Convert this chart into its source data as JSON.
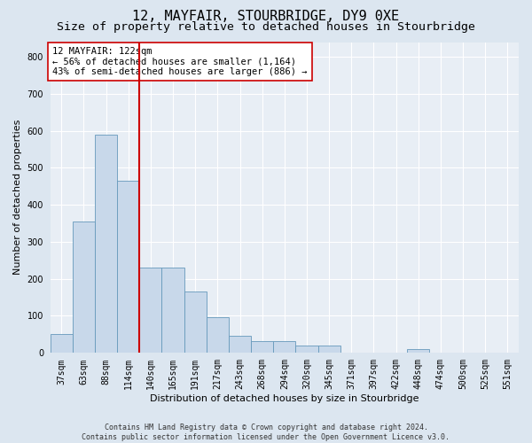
{
  "title": "12, MAYFAIR, STOURBRIDGE, DY9 0XE",
  "subtitle": "Size of property relative to detached houses in Stourbridge",
  "xlabel": "Distribution of detached houses by size in Stourbridge",
  "ylabel": "Number of detached properties",
  "footer_line1": "Contains HM Land Registry data © Crown copyright and database right 2024.",
  "footer_line2": "Contains public sector information licensed under the Open Government Licence v3.0.",
  "bar_labels": [
    "37sqm",
    "63sqm",
    "88sqm",
    "114sqm",
    "140sqm",
    "165sqm",
    "191sqm",
    "217sqm",
    "243sqm",
    "268sqm",
    "294sqm",
    "320sqm",
    "345sqm",
    "371sqm",
    "397sqm",
    "422sqm",
    "448sqm",
    "474sqm",
    "500sqm",
    "525sqm",
    "551sqm"
  ],
  "bar_values": [
    50,
    355,
    590,
    465,
    230,
    230,
    165,
    95,
    45,
    30,
    30,
    20,
    20,
    0,
    0,
    0,
    10,
    0,
    0,
    0,
    0
  ],
  "bar_color": "#c8d8ea",
  "bar_edge_color": "#6699bb",
  "vline_x": 3.5,
  "vline_color": "#cc0000",
  "annotation_text": "12 MAYFAIR: 122sqm\n← 56% of detached houses are smaller (1,164)\n43% of semi-detached houses are larger (886) →",
  "annotation_box_color": "white",
  "annotation_box_edge": "#cc0000",
  "ylim": [
    0,
    840
  ],
  "yticks": [
    0,
    100,
    200,
    300,
    400,
    500,
    600,
    700,
    800
  ],
  "bg_color": "#dce6f0",
  "plot_bg_color": "#e8eef5",
  "grid_color": "#ffffff",
  "title_fontsize": 11,
  "subtitle_fontsize": 9.5,
  "tick_fontsize": 7,
  "label_fontsize": 8,
  "annotation_fontsize": 7.5,
  "footer_fontsize": 6
}
